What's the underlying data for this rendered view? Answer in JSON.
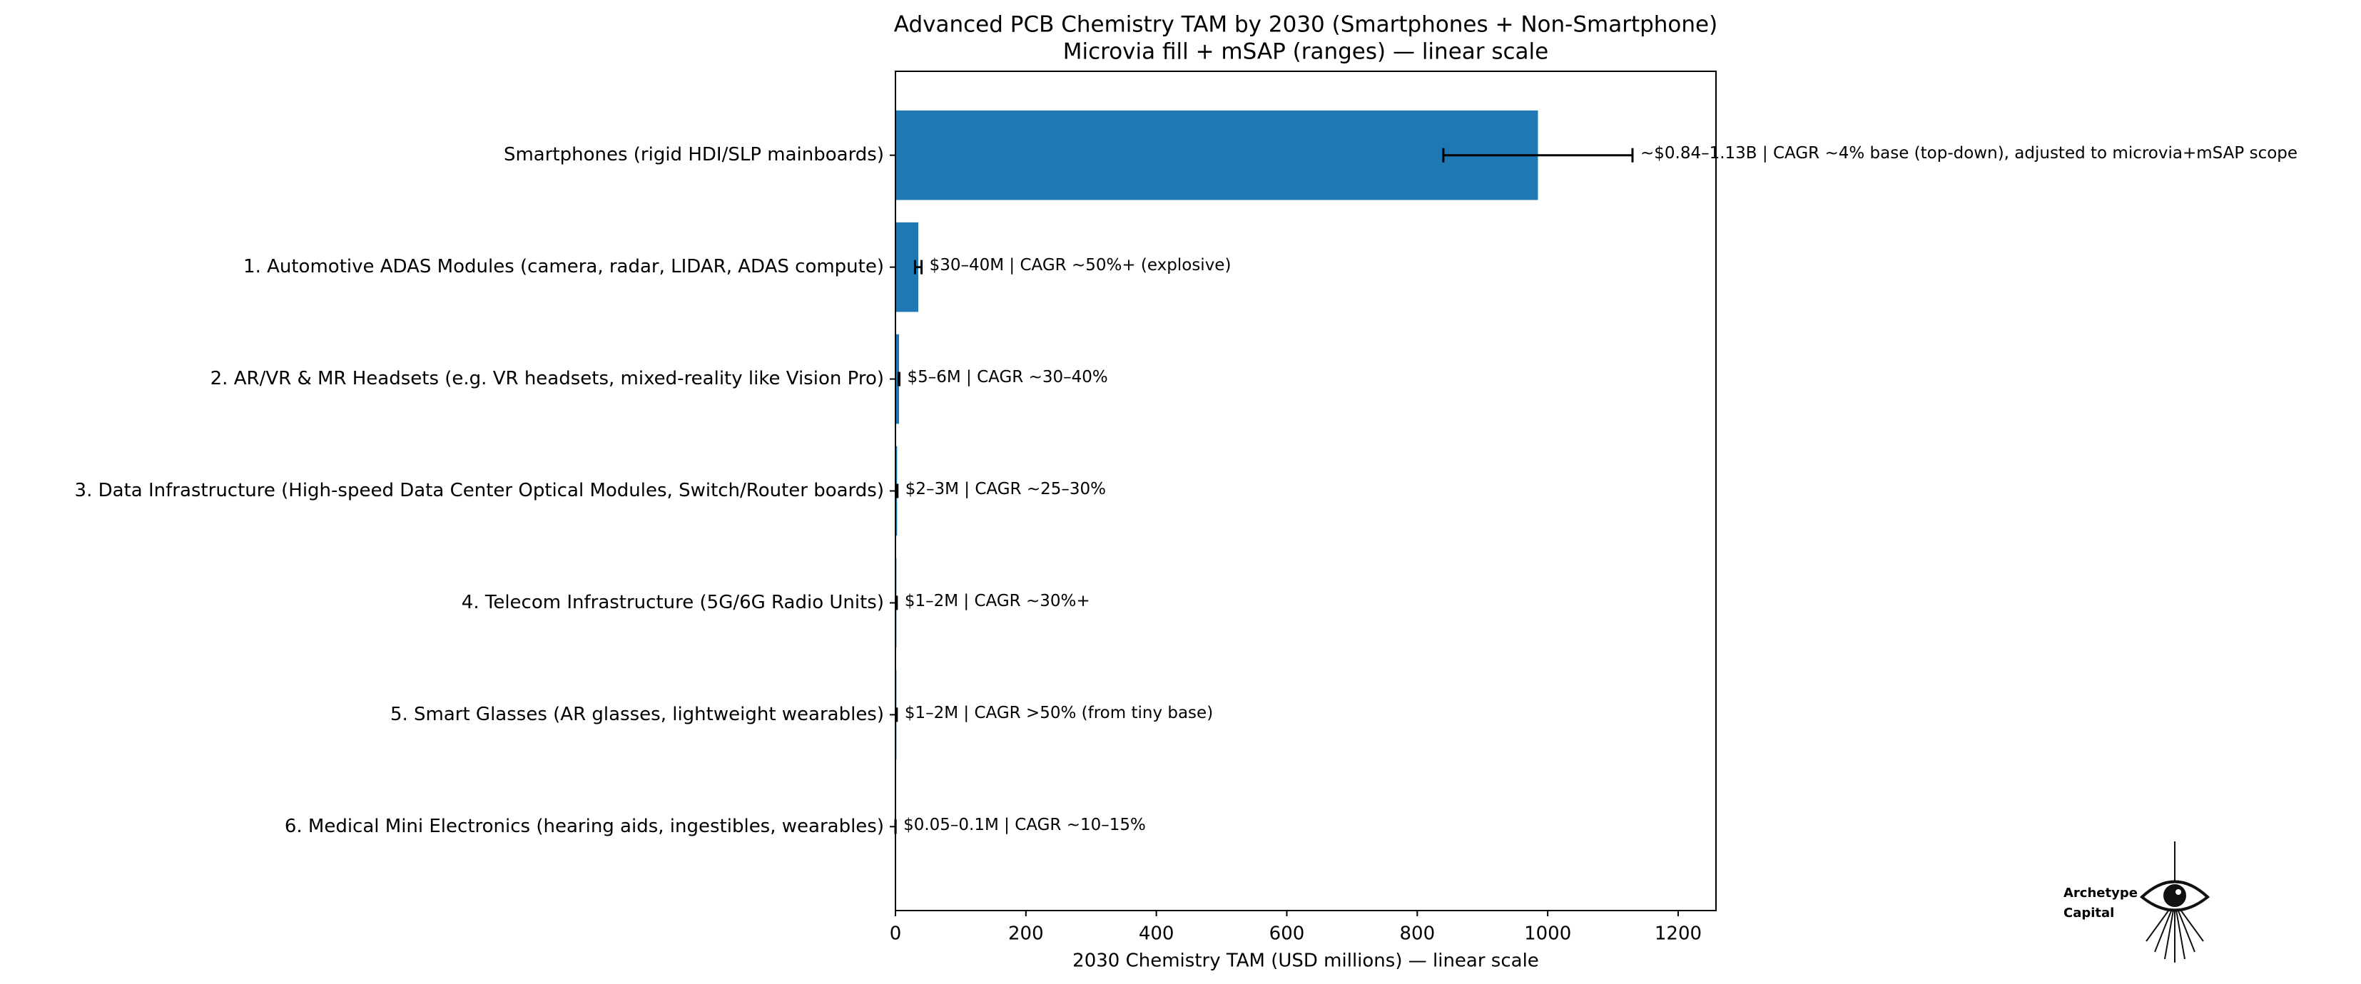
{
  "chart_data": {
    "type": "barh",
    "title": "Advanced PCB Chemistry TAM by 2030 (Smartphones + Non-Smartphone)",
    "subtitle": "Microvia fill + mSAP (ranges) — linear scale",
    "xlabel": "2030 Chemistry TAM (USD millions) — linear scale",
    "categories": [
      "Smartphones (rigid HDI/SLP mainboards)",
      "1. Automotive ADAS Modules (camera, radar, LIDAR, ADAS compute)",
      "2. AR/VR & MR Headsets (e.g. VR headsets, mixed-reality like Vision Pro)",
      "3. Data Infrastructure (High-speed Data Center Optical Modules, Switch/Router boards)",
      "4. Telecom Infrastructure (5G/6G Radio Units)",
      "5. Smart Glasses (AR glasses, lightweight wearables)",
      "6. Medical Mini Electronics (hearing aids, ingestibles, wearables)"
    ],
    "values": [
      985,
      35,
      5.5,
      2.5,
      1.5,
      1.5,
      0.075
    ],
    "errors": [
      145,
      5,
      0.5,
      0.5,
      0.5,
      0.5,
      0.025
    ],
    "annotations": [
      "~$0.84–1.13B | CAGR ~4% base (top-down), adjusted to microvia+mSAP scope",
      "$30–40M | CAGR ~50%+ (explosive)",
      "$5–6M | CAGR ~30–40%",
      "$2–3M | CAGR ~25–30%",
      "$1–2M | CAGR ~30%+",
      "$1–2M | CAGR >50% (from tiny base)",
      "$0.05–0.1M | CAGR ~10–15%"
    ],
    "color": "#1f77b4",
    "error_color": "#000000",
    "xlim": [
      0,
      1258
    ],
    "xticks": [
      0,
      200,
      400,
      600,
      800,
      1000,
      1200
    ],
    "grid": false,
    "logo": [
      "Archetype",
      "Capital"
    ]
  }
}
